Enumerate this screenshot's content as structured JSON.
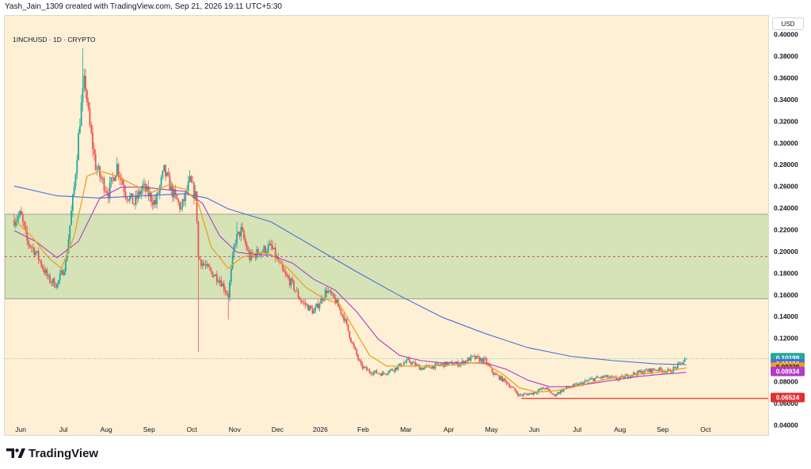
{
  "header": {
    "credit": "Yash_Jain_1309 created with TradingView.com, Sep 21, 2026 19:11 UTC+5:30"
  },
  "symbol_label": "1INCHUSD · 1D · CRYPTO",
  "currency": "USD",
  "footer": {
    "brand": "TradingView",
    "logo_icon": "tradingview-logo-icon"
  },
  "colors": {
    "background": "#fdf0d5",
    "zone": "#d5e3b7",
    "zone_border": "#7e7e7e",
    "up_candle": "#26a69a",
    "down_candle": "#ef5350",
    "ema_orange": "#f0a020",
    "ema_purple": "#b03cc8",
    "ema_blue": "#4870e0",
    "support_line": "#e03030"
  },
  "chart_data": {
    "type": "candlestick",
    "title": "1INCHUSD · 1D · CRYPTO",
    "x_axis_labels": [
      "Jun",
      "Jul",
      "Aug",
      "Sep",
      "Oct",
      "Nov",
      "Dec",
      "2026",
      "Feb",
      "Mar",
      "Apr",
      "May",
      "Jun",
      "Jul",
      "Aug",
      "Sep",
      "Oct"
    ],
    "y_axis_labels": [
      "0.40000",
      "0.38000",
      "0.36000",
      "0.34000",
      "0.32000",
      "0.30000",
      "0.28000",
      "0.26000",
      "0.24000",
      "0.22000",
      "0.20000",
      "0.18000",
      "0.16000",
      "0.14000",
      "0.12000",
      "0.10000",
      "0.08000",
      "0.06000",
      "0.04000"
    ],
    "ylim": [
      0.03,
      0.418
    ],
    "xlim_months": [
      0,
      16.8
    ],
    "grid": false,
    "zone": {
      "low": 0.157,
      "high": 0.235,
      "mid": 0.196
    },
    "support_level": 0.0652,
    "current_price_level": 0.1019,
    "price_tags": [
      {
        "value": "0.10199",
        "price": 0.10199,
        "color": "#26a69a"
      },
      {
        "value": "0.09636",
        "price": 0.09636,
        "color": "#4870e0"
      },
      {
        "value": "0.09328",
        "price": 0.09328,
        "color": "#f0a020"
      },
      {
        "value": "0.08934",
        "price": 0.08934,
        "color": "#b03cc8"
      },
      {
        "value": "0.06524",
        "price": 0.06524,
        "color": "#e03030"
      }
    ],
    "series": [
      {
        "name": "Price",
        "type": "candlestick",
        "anchors": [
          [
            0.0,
            0.23
          ],
          [
            0.15,
            0.235
          ],
          [
            0.3,
            0.21
          ],
          [
            0.5,
            0.2
          ],
          [
            0.8,
            0.175
          ],
          [
            1.0,
            0.17
          ],
          [
            1.2,
            0.19
          ],
          [
            1.4,
            0.26
          ],
          [
            1.55,
            0.33
          ],
          [
            1.65,
            0.36
          ],
          [
            1.75,
            0.32
          ],
          [
            1.9,
            0.28
          ],
          [
            2.0,
            0.27
          ],
          [
            2.2,
            0.255
          ],
          [
            2.4,
            0.28
          ],
          [
            2.6,
            0.255
          ],
          [
            2.8,
            0.245
          ],
          [
            3.0,
            0.26
          ],
          [
            3.3,
            0.245
          ],
          [
            3.5,
            0.275
          ],
          [
            3.7,
            0.255
          ],
          [
            3.9,
            0.24
          ],
          [
            4.1,
            0.265
          ],
          [
            4.25,
            0.25
          ],
          [
            4.3,
            0.195
          ],
          [
            4.5,
            0.185
          ],
          [
            4.8,
            0.175
          ],
          [
            5.0,
            0.16
          ],
          [
            5.15,
            0.21
          ],
          [
            5.3,
            0.22
          ],
          [
            5.5,
            0.195
          ],
          [
            5.7,
            0.2
          ],
          [
            6.0,
            0.205
          ],
          [
            6.3,
            0.18
          ],
          [
            6.5,
            0.17
          ],
          [
            6.7,
            0.155
          ],
          [
            7.0,
            0.145
          ],
          [
            7.3,
            0.165
          ],
          [
            7.5,
            0.155
          ],
          [
            7.7,
            0.14
          ],
          [
            7.9,
            0.115
          ],
          [
            8.1,
            0.095
          ],
          [
            8.3,
            0.09
          ],
          [
            8.6,
            0.088
          ],
          [
            8.9,
            0.093
          ],
          [
            9.2,
            0.1
          ],
          [
            9.5,
            0.093
          ],
          [
            9.8,
            0.095
          ],
          [
            10.1,
            0.097
          ],
          [
            10.4,
            0.097
          ],
          [
            10.7,
            0.103
          ],
          [
            11.0,
            0.1
          ],
          [
            11.2,
            0.088
          ],
          [
            11.5,
            0.08
          ],
          [
            11.8,
            0.068
          ],
          [
            12.1,
            0.07
          ],
          [
            12.4,
            0.075
          ],
          [
            12.6,
            0.068
          ],
          [
            12.9,
            0.075
          ],
          [
            13.2,
            0.078
          ],
          [
            13.5,
            0.083
          ],
          [
            13.8,
            0.085
          ],
          [
            14.1,
            0.083
          ],
          [
            14.4,
            0.087
          ],
          [
            14.7,
            0.09
          ],
          [
            15.0,
            0.092
          ],
          [
            15.3,
            0.09
          ],
          [
            15.5,
            0.095
          ],
          [
            15.7,
            0.1019
          ]
        ],
        "notable_wicks": [
          {
            "month": 1.6,
            "high": 0.388
          },
          {
            "month": 4.3,
            "low": 0.108
          },
          {
            "month": 5.0,
            "low": 0.138
          },
          {
            "month": 5.2,
            "high": 0.228
          }
        ]
      },
      {
        "name": "EMA orange",
        "color": "#f0a020",
        "points": [
          [
            0.0,
            0.23
          ],
          [
            0.4,
            0.215
          ],
          [
            0.8,
            0.195
          ],
          [
            1.1,
            0.185
          ],
          [
            1.4,
            0.215
          ],
          [
            1.7,
            0.27
          ],
          [
            2.0,
            0.275
          ],
          [
            2.4,
            0.27
          ],
          [
            2.8,
            0.262
          ],
          [
            3.2,
            0.255
          ],
          [
            3.6,
            0.262
          ],
          [
            4.0,
            0.258
          ],
          [
            4.3,
            0.245
          ],
          [
            4.6,
            0.205
          ],
          [
            5.0,
            0.185
          ],
          [
            5.3,
            0.195
          ],
          [
            5.7,
            0.2
          ],
          [
            6.0,
            0.198
          ],
          [
            6.4,
            0.185
          ],
          [
            6.8,
            0.168
          ],
          [
            7.2,
            0.158
          ],
          [
            7.6,
            0.152
          ],
          [
            8.0,
            0.125
          ],
          [
            8.3,
            0.105
          ],
          [
            8.7,
            0.095
          ],
          [
            9.2,
            0.095
          ],
          [
            9.7,
            0.095
          ],
          [
            10.2,
            0.096
          ],
          [
            10.7,
            0.098
          ],
          [
            11.0,
            0.097
          ],
          [
            11.4,
            0.088
          ],
          [
            11.8,
            0.075
          ],
          [
            12.2,
            0.071
          ],
          [
            12.6,
            0.072
          ],
          [
            13.0,
            0.075
          ],
          [
            13.5,
            0.08
          ],
          [
            14.0,
            0.084
          ],
          [
            14.5,
            0.087
          ],
          [
            15.0,
            0.089
          ],
          [
            15.5,
            0.092
          ],
          [
            15.7,
            0.0933
          ]
        ]
      },
      {
        "name": "EMA purple",
        "color": "#b03cc8",
        "points": [
          [
            0.0,
            0.22
          ],
          [
            0.5,
            0.21
          ],
          [
            1.0,
            0.195
          ],
          [
            1.5,
            0.21
          ],
          [
            2.0,
            0.25
          ],
          [
            2.5,
            0.26
          ],
          [
            3.0,
            0.26
          ],
          [
            3.5,
            0.258
          ],
          [
            4.0,
            0.256
          ],
          [
            4.4,
            0.245
          ],
          [
            4.8,
            0.215
          ],
          [
            5.2,
            0.2
          ],
          [
            5.6,
            0.198
          ],
          [
            6.0,
            0.197
          ],
          [
            6.5,
            0.19
          ],
          [
            7.0,
            0.175
          ],
          [
            7.5,
            0.165
          ],
          [
            8.0,
            0.145
          ],
          [
            8.5,
            0.12
          ],
          [
            9.0,
            0.105
          ],
          [
            9.5,
            0.1
          ],
          [
            10.0,
            0.098
          ],
          [
            10.5,
            0.098
          ],
          [
            11.0,
            0.098
          ],
          [
            11.5,
            0.092
          ],
          [
            12.0,
            0.082
          ],
          [
            12.5,
            0.076
          ],
          [
            13.0,
            0.076
          ],
          [
            13.5,
            0.079
          ],
          [
            14.0,
            0.082
          ],
          [
            14.5,
            0.085
          ],
          [
            15.0,
            0.087
          ],
          [
            15.5,
            0.0885
          ],
          [
            15.7,
            0.0893
          ]
        ]
      },
      {
        "name": "EMA blue",
        "color": "#4870e0",
        "points": [
          [
            0.0,
            0.261
          ],
          [
            1.0,
            0.252
          ],
          [
            2.0,
            0.25
          ],
          [
            3.0,
            0.252
          ],
          [
            4.0,
            0.254
          ],
          [
            4.5,
            0.25
          ],
          [
            5.0,
            0.24
          ],
          [
            6.0,
            0.228
          ],
          [
            7.0,
            0.205
          ],
          [
            8.0,
            0.182
          ],
          [
            9.0,
            0.16
          ],
          [
            10.0,
            0.14
          ],
          [
            11.0,
            0.125
          ],
          [
            12.0,
            0.112
          ],
          [
            13.0,
            0.104
          ],
          [
            14.0,
            0.1
          ],
          [
            15.0,
            0.097
          ],
          [
            15.7,
            0.0964
          ]
        ]
      }
    ]
  }
}
